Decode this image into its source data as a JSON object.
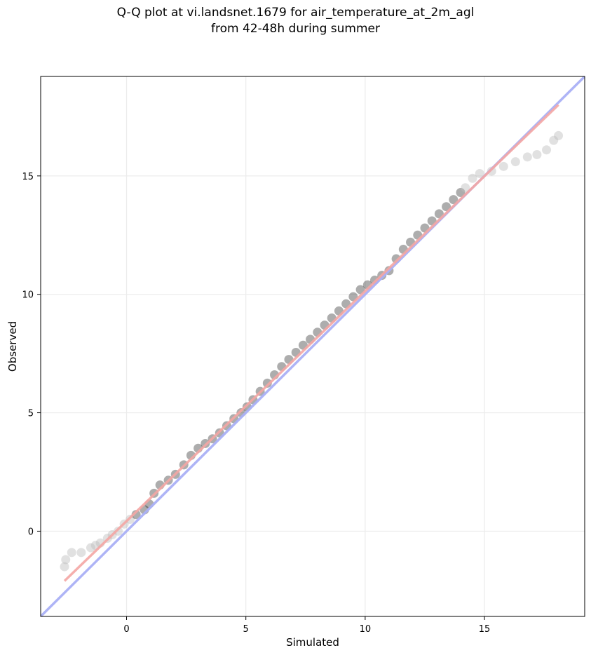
{
  "chart_data": {
    "type": "scatter",
    "title_line1": "Q-Q plot at vi.landsnet.1679 for air_temperature_at_2m_agl",
    "title_line2": "from 42-48h during summer",
    "xlabel": "Simulated",
    "ylabel": "Observed",
    "xlim": [
      -3.6,
      19.2
    ],
    "ylim": [
      -3.6,
      19.2
    ],
    "xticks": [
      0,
      5,
      10,
      15
    ],
    "yticks": [
      0,
      5,
      10,
      15
    ],
    "grid": true,
    "identity_line": {
      "color": "#aab0f5",
      "from": [
        -3.6,
        -3.6
      ],
      "to": [
        19.2,
        19.2
      ]
    },
    "fit_line": {
      "color": "#f4a6a4",
      "from": [
        -2.6,
        -2.1
      ],
      "to": [
        18.1,
        18.0
      ]
    },
    "points": {
      "color": "#000000",
      "tail_color": "#bdbdbd",
      "x": [
        -2.6,
        -2.55,
        -2.3,
        -1.9,
        -1.5,
        -1.3,
        -1.1,
        -0.8,
        -0.6,
        -0.35,
        -0.1,
        0.15,
        0.4,
        0.75,
        0.95,
        1.15,
        1.4,
        1.75,
        2.05,
        2.4,
        2.7,
        3.0,
        3.3,
        3.6,
        3.9,
        4.2,
        4.5,
        4.8,
        5.05,
        5.3,
        5.6,
        5.9,
        6.2,
        6.5,
        6.8,
        7.1,
        7.4,
        7.7,
        8.0,
        8.3,
        8.6,
        8.9,
        9.2,
        9.5,
        9.8,
        10.1,
        10.4,
        10.7,
        11.0,
        11.3,
        11.6,
        11.9,
        12.2,
        12.5,
        12.8,
        13.1,
        13.4,
        13.7,
        14.0,
        14.2,
        14.5,
        14.8,
        15.3,
        15.8,
        16.3,
        16.8,
        17.2,
        17.6,
        17.9,
        18.1
      ],
      "y": [
        -1.5,
        -1.2,
        -0.9,
        -0.9,
        -0.7,
        -0.6,
        -0.5,
        -0.3,
        -0.15,
        0.0,
        0.3,
        0.5,
        0.7,
        0.9,
        1.15,
        1.6,
        1.95,
        2.15,
        2.4,
        2.8,
        3.2,
        3.5,
        3.7,
        3.9,
        4.15,
        4.45,
        4.75,
        5.0,
        5.25,
        5.55,
        5.9,
        6.25,
        6.6,
        6.95,
        7.25,
        7.55,
        7.85,
        8.1,
        8.4,
        8.7,
        9.0,
        9.3,
        9.6,
        9.9,
        10.2,
        10.4,
        10.6,
        10.8,
        11.0,
        11.5,
        11.9,
        12.2,
        12.5,
        12.8,
        13.1,
        13.4,
        13.7,
        14.0,
        14.3,
        14.5,
        14.9,
        15.1,
        15.2,
        15.4,
        15.6,
        15.8,
        15.9,
        16.1,
        16.5,
        16.7
      ]
    }
  }
}
